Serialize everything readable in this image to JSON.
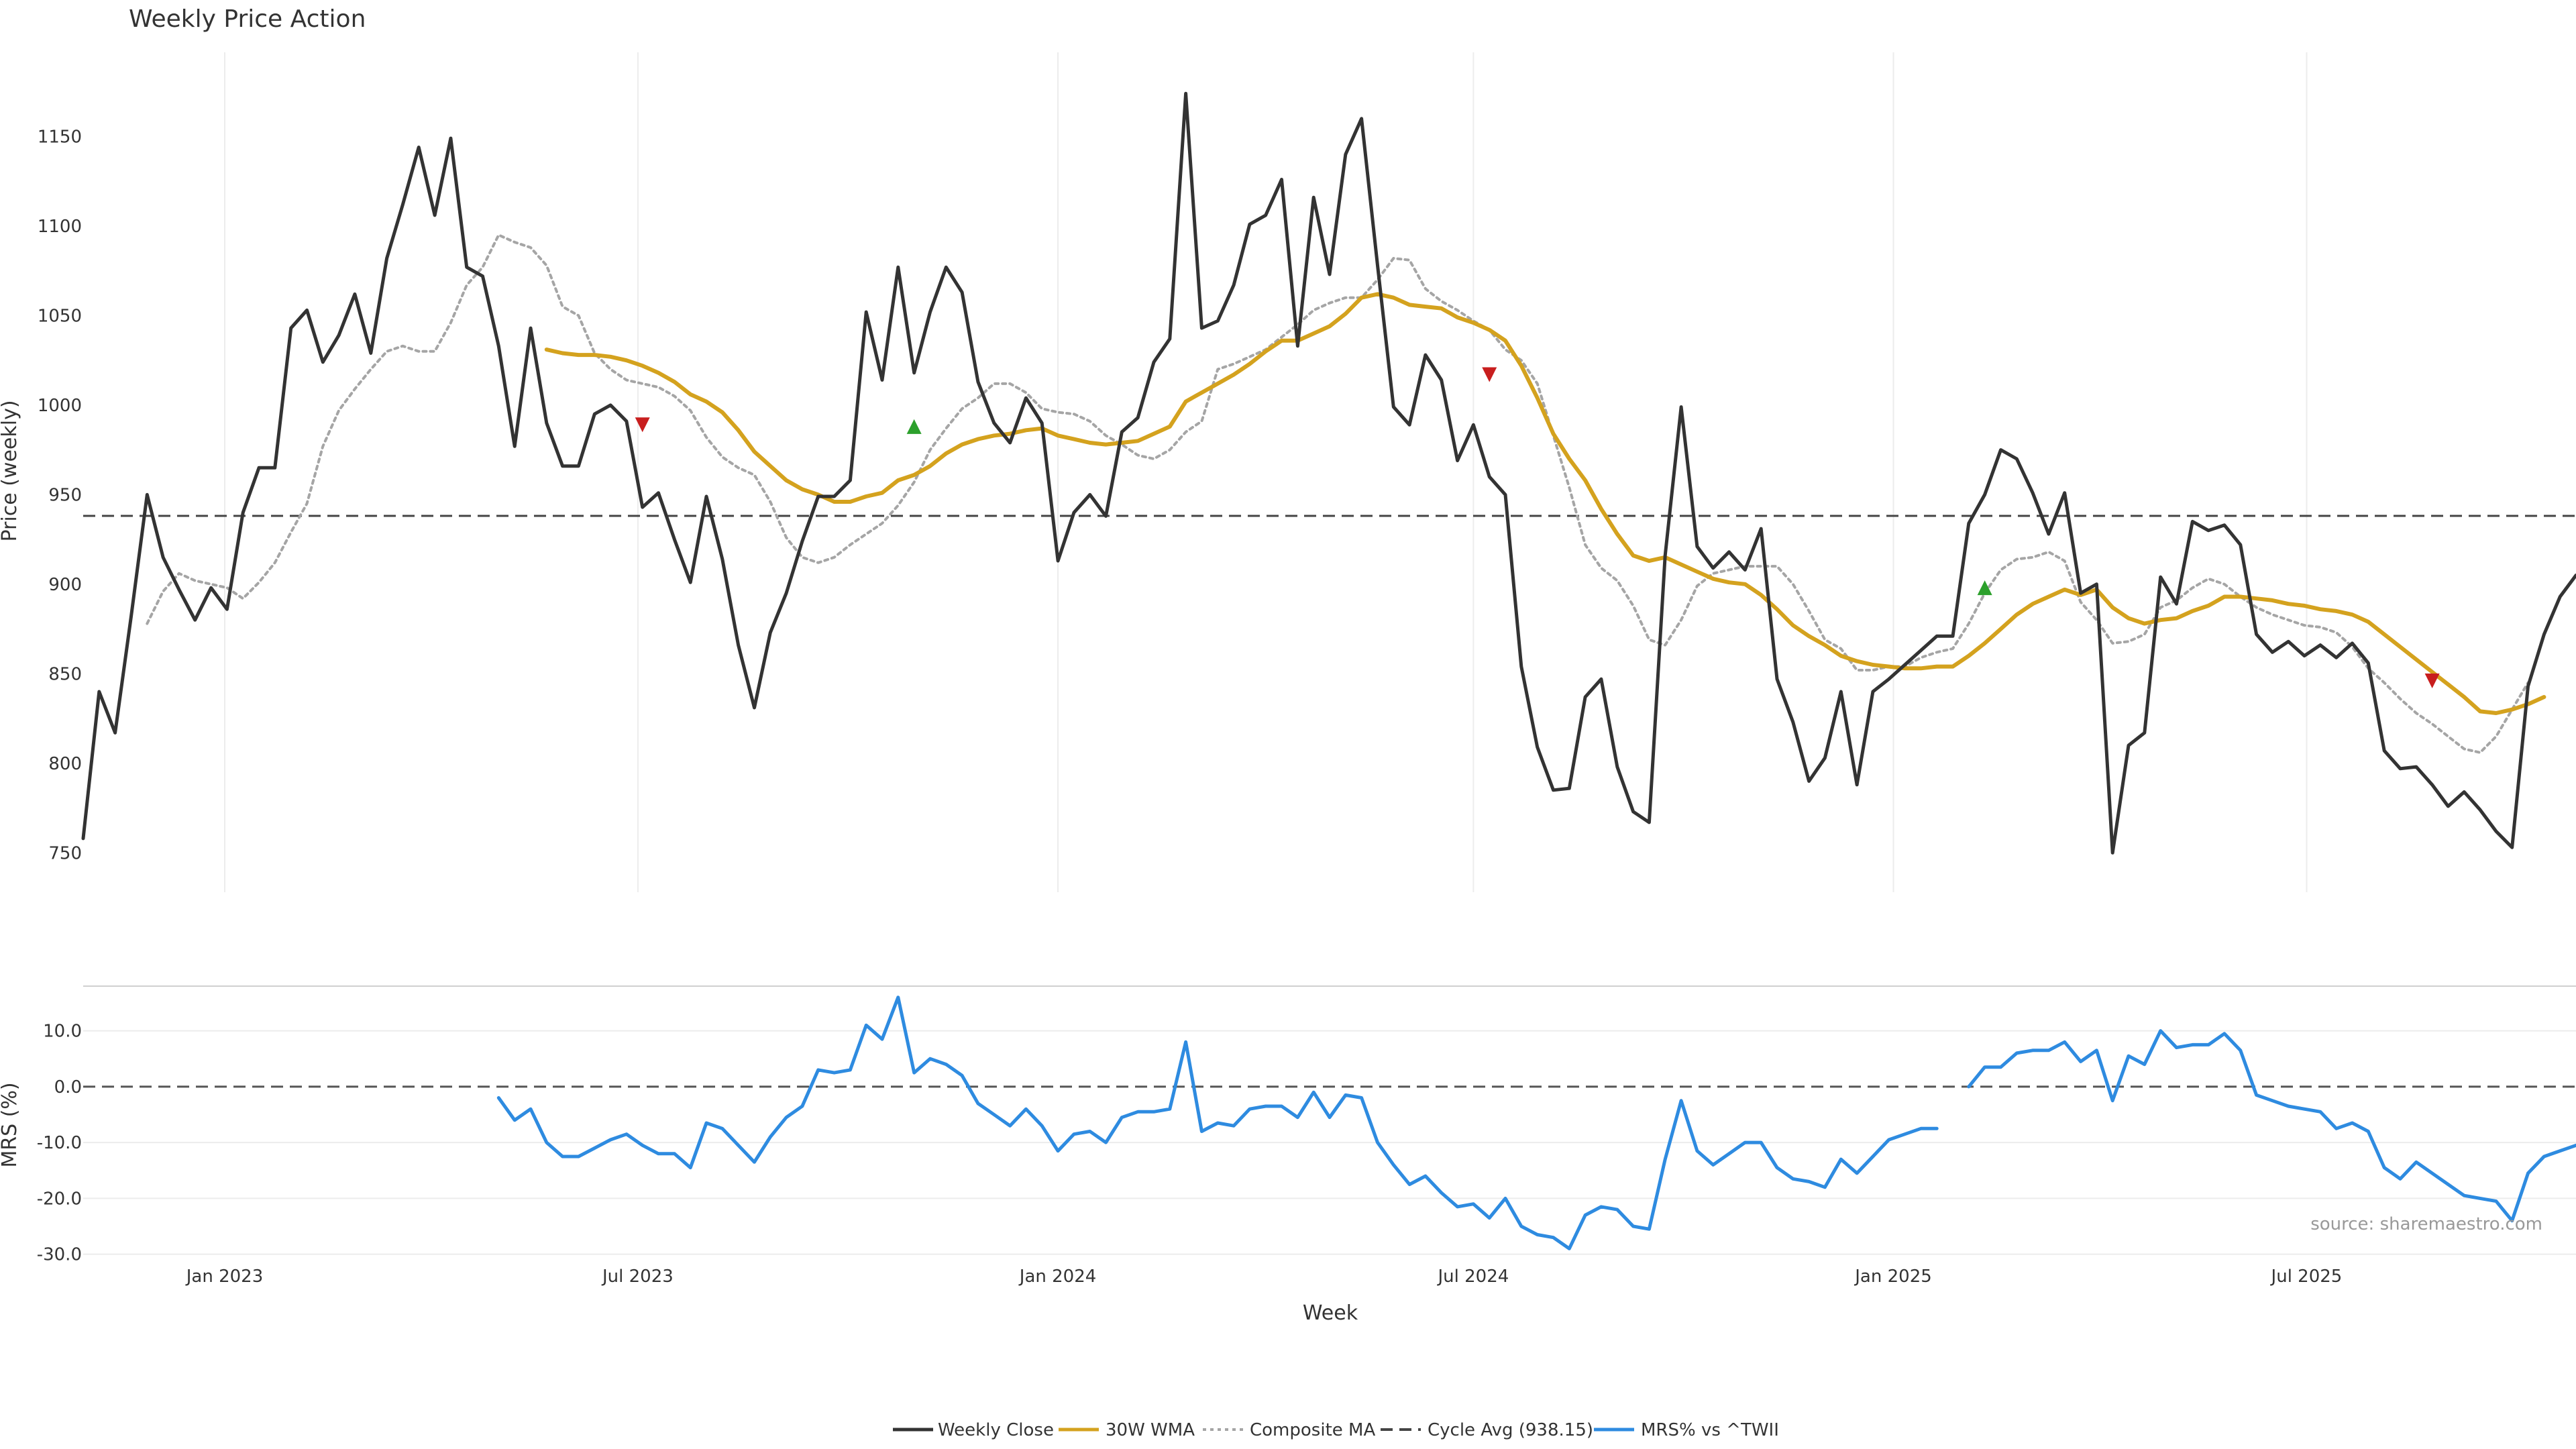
{
  "chart_data": {
    "type": "line",
    "title": "Weekly Price Action",
    "xlabel": "Week",
    "x_ticks": [
      "Jan 2023",
      "Jul 2023",
      "Jan 2024",
      "Jul 2024",
      "Jan 2025",
      "Jul 2025"
    ],
    "source": "source: sharemaestro.com",
    "price_panel": {
      "ylabel": "Price (weekly)",
      "ylim": [
        728,
        1197
      ],
      "yticks": [
        "750",
        "800",
        "850",
        "900",
        "950",
        "1000",
        "1050",
        "1100",
        "1150"
      ],
      "grid": "x",
      "start_date": "2022-10-31",
      "cycle_avg": 938.15,
      "series": [
        {
          "name": "Weekly Close",
          "color": "#333333",
          "style": "solid",
          "start_week": 0,
          "values": [
            758,
            840,
            817,
            882,
            950,
            915,
            897,
            880,
            898,
            886,
            940,
            965,
            965,
            1043,
            1053,
            1024,
            1039,
            1062,
            1029,
            1082,
            1112,
            1144,
            1106,
            1149,
            1077,
            1072,
            1033,
            977,
            1043,
            990,
            966,
            966,
            995,
            1000,
            991,
            943,
            951,
            925,
            901,
            949,
            914,
            866,
            831,
            873,
            895,
            924,
            949,
            949,
            958,
            1052,
            1014,
            1077,
            1018,
            1052,
            1077,
            1063,
            1013,
            990,
            979,
            1004,
            990,
            913,
            940,
            950,
            938,
            985,
            993,
            1024,
            1037,
            1174,
            1043,
            1047,
            1067,
            1101,
            1106,
            1126,
            1033,
            1116,
            1073,
            1140,
            1160,
            1078,
            999,
            989,
            1028,
            1014,
            969,
            989,
            960,
            950,
            854,
            809,
            785,
            786,
            837,
            847,
            798,
            773,
            767,
            916,
            999,
            921,
            909,
            918,
            908,
            931,
            847,
            823,
            790,
            803,
            840,
            788,
            840,
            847,
            855,
            863,
            871,
            871,
            934,
            950,
            975,
            970,
            951,
            928,
            951,
            895,
            900,
            750,
            810,
            817,
            904,
            889,
            935,
            930,
            933,
            922,
            872,
            862,
            868,
            860,
            866,
            859,
            867,
            856,
            807,
            797,
            798,
            788,
            776,
            784,
            774,
            762,
            753,
            843,
            872,
            893,
            905
          ]
        },
        {
          "name": "30W WMA",
          "color": "#D4A21E",
          "style": "solid",
          "start_week": 29,
          "values": [
            1031,
            1029,
            1028,
            1028,
            1027,
            1025,
            1022,
            1018,
            1013,
            1006,
            1002,
            996,
            986,
            974,
            966,
            958,
            953,
            950,
            946,
            946,
            949,
            951,
            958,
            961,
            966,
            973,
            978,
            981,
            983,
            984,
            986,
            987,
            983,
            981,
            979,
            978,
            979,
            980,
            984,
            988,
            1002,
            1007,
            1012,
            1017,
            1023,
            1030,
            1036,
            1036,
            1040,
            1044,
            1051,
            1060,
            1062,
            1060,
            1056,
            1055,
            1054,
            1049,
            1046,
            1042,
            1036,
            1022,
            1004,
            984,
            970,
            958,
            942,
            928,
            916,
            913,
            915,
            911,
            907,
            903,
            901,
            900,
            894,
            886,
            877,
            871,
            866,
            860,
            857,
            855,
            854,
            853,
            853,
            854,
            854,
            860,
            867,
            875,
            883,
            889,
            893,
            897,
            894,
            897,
            887,
            881,
            878,
            880,
            881,
            885,
            888,
            893,
            893,
            892,
            891,
            889,
            888,
            886,
            885,
            883,
            879,
            872,
            865,
            858,
            851,
            844,
            837,
            829,
            828,
            830,
            833,
            837
          ]
        },
        {
          "name": "Composite MA",
          "color": "#A5A5A5",
          "style": "dotted",
          "start_week": 4,
          "values": [
            878,
            896,
            906,
            902,
            900,
            898,
            892,
            901,
            912,
            929,
            945,
            977,
            997,
            1009,
            1020,
            1030,
            1033,
            1030,
            1030,
            1046,
            1067,
            1077,
            1095,
            1091,
            1088,
            1078,
            1055,
            1050,
            1029,
            1020,
            1014,
            1012,
            1010,
            1005,
            997,
            982,
            971,
            965,
            961,
            946,
            926,
            915,
            912,
            915,
            922,
            928,
            934,
            944,
            957,
            975,
            987,
            998,
            1004,
            1012,
            1012,
            1007,
            998,
            996,
            995,
            991,
            983,
            978,
            972,
            970,
            975,
            985,
            991,
            1020,
            1023,
            1027,
            1031,
            1038,
            1045,
            1053,
            1057,
            1060,
            1060,
            1070,
            1082,
            1081,
            1065,
            1058,
            1053,
            1047,
            1042,
            1031,
            1025,
            1012,
            983,
            954,
            922,
            909,
            902,
            888,
            869,
            866,
            880,
            899,
            906,
            908,
            910,
            910,
            910,
            900,
            885,
            869,
            864,
            852,
            852,
            854,
            854,
            859,
            862,
            864,
            878,
            895,
            908,
            914,
            915,
            918,
            913,
            890,
            880,
            867,
            868,
            872,
            887,
            891,
            898,
            903,
            900,
            893,
            887,
            883,
            880,
            877,
            876,
            873,
            865,
            853,
            845,
            836,
            828,
            822,
            815,
            808,
            806,
            815,
            830,
            845
          ]
        }
      ],
      "markers": [
        {
          "week": 35,
          "value": 989,
          "direction": "down",
          "color": "#C81E1E"
        },
        {
          "week": 52,
          "value": 988,
          "direction": "up",
          "color": "#2CA02C"
        },
        {
          "week": 88,
          "value": 1017,
          "direction": "down",
          "color": "#C81E1E"
        },
        {
          "week": 119,
          "value": 898,
          "direction": "up",
          "color": "#2CA02C"
        },
        {
          "week": 147,
          "value": 846,
          "direction": "down",
          "color": "#C81E1E"
        }
      ]
    },
    "mrs_panel": {
      "ylabel": "MRS (%)",
      "ylim": [
        -31,
        18
      ],
      "yticks": [
        "10.0",
        "0.0",
        "-10.0",
        "-20.0",
        "-30.0"
      ],
      "grid": "y",
      "zero_line": 0,
      "series": [
        {
          "name": "MRS% vs ^TWII",
          "color": "#2E8BE0",
          "style": "solid",
          "start_week": 26,
          "values": [
            -2.0,
            -6.0,
            -4.0,
            -10.0,
            -12.5,
            -12.5,
            -11.0,
            -9.5,
            -8.5,
            -10.5,
            -12.0,
            -12.0,
            -14.5,
            -6.5,
            -7.5,
            -10.5,
            -13.5,
            -9.0,
            -5.5,
            -3.5,
            3.0,
            2.5,
            3.0,
            11.0,
            8.5,
            16.0,
            2.5,
            5.0,
            4.0,
            2.0,
            -3.0,
            -5.0,
            -7.0,
            -4.0,
            -7.0,
            -11.5,
            -8.5,
            -8.0,
            -10.0,
            -5.5,
            -4.5,
            -4.5,
            -4.0,
            8.0,
            -8.0,
            -6.5,
            -7.0,
            -4.0,
            -3.5,
            -3.5,
            -5.5,
            -1.0,
            -5.5,
            -1.5,
            -2.0,
            -10.0,
            -14.0,
            -17.5,
            -16.0,
            -19.0,
            -21.5,
            -21.0,
            -23.5,
            -20.0,
            -25.0,
            -26.5,
            -27.0,
            -29.0,
            -23.0,
            -21.5,
            -22.0,
            -25.0,
            -25.5,
            -13.0,
            -2.5,
            -11.5,
            -14.0,
            -12.0,
            -10.0,
            -10.0,
            -14.5,
            -16.5,
            -17.0,
            -18.0,
            -13.0,
            -15.5,
            -12.5,
            -9.5,
            -8.5,
            -7.5,
            -7.5,
            null,
            0.0,
            3.5,
            3.5,
            6.0,
            6.5,
            6.5,
            8.0,
            4.5,
            6.5,
            -2.5,
            5.5,
            4.0,
            10.0,
            7.0,
            7.5,
            7.5,
            9.5,
            6.5,
            -1.5,
            -2.5,
            -3.5,
            -4.0,
            -4.5,
            -7.5,
            -6.5,
            -8.0,
            -14.5,
            -16.5,
            -13.5,
            -15.5,
            -17.5,
            -19.5,
            -20.0,
            -20.5,
            -24.0,
            -15.5,
            -12.5,
            -11.5,
            -10.5
          ]
        }
      ]
    },
    "legend": {
      "placement": "bottom-center",
      "items": [
        {
          "label": "Weekly Close",
          "color": "#333333",
          "style": "solid"
        },
        {
          "label": "30W WMA",
          "color": "#D4A21E",
          "style": "solid"
        },
        {
          "label": "Composite MA",
          "color": "#A5A5A5",
          "style": "dotted"
        },
        {
          "label": "Cycle Avg (938.15)",
          "color": "#444444",
          "style": "dashed"
        },
        {
          "label": "MRS% vs ^TWII",
          "color": "#2E8BE0",
          "style": "solid"
        }
      ]
    }
  }
}
